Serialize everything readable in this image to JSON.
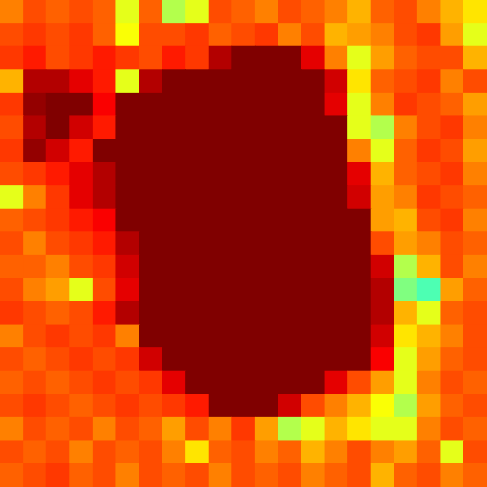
{
  "chart_data": {
    "type": "heatmap",
    "tick_labels": false,
    "zlim": [
      0,
      1
    ],
    "cells": [
      [
        0.75,
        0.8,
        0.78,
        0.8,
        0.78,
        0.6,
        0.78,
        0.55,
        0.6,
        0.8,
        0.78,
        0.75,
        0.8,
        0.78,
        0.75,
        0.7,
        0.78,
        0.8,
        0.75,
        0.7,
        0.65
      ],
      [
        0.8,
        0.82,
        0.8,
        0.82,
        0.78,
        0.62,
        0.8,
        0.8,
        0.82,
        0.78,
        0.8,
        0.82,
        0.75,
        0.8,
        0.7,
        0.72,
        0.75,
        0.8,
        0.82,
        0.72,
        0.6
      ],
      [
        0.82,
        0.85,
        0.8,
        0.82,
        0.85,
        0.82,
        0.8,
        0.85,
        0.82,
        0.95,
        1,
        1,
        1,
        0.9,
        0.75,
        0.6,
        0.72,
        0.78,
        0.8,
        0.8,
        0.7
      ],
      [
        0.7,
        0.95,
        0.95,
        0.9,
        0.85,
        0.6,
        0.95,
        1,
        1,
        1,
        1,
        1,
        1,
        1,
        0.92,
        0.65,
        0.78,
        0.8,
        0.82,
        0.75,
        0.8
      ],
      [
        0.82,
        0.98,
        1,
        1,
        0.88,
        1,
        1,
        1,
        1,
        1,
        1,
        1,
        1,
        1,
        0.9,
        0.6,
        0.75,
        0.82,
        0.8,
        0.78,
        0.72
      ],
      [
        0.8,
        0.95,
        1,
        0.92,
        0.85,
        1,
        1,
        1,
        1,
        1,
        1,
        1,
        1,
        1,
        1,
        0.6,
        0.55,
        0.75,
        0.8,
        0.82,
        0.75
      ],
      [
        0.82,
        0.98,
        0.92,
        0.85,
        1,
        1,
        1,
        1,
        1,
        1,
        1,
        1,
        1,
        1,
        1,
        0.75,
        0.6,
        0.78,
        0.82,
        0.8,
        0.72
      ],
      [
        0.8,
        0.82,
        0.85,
        0.9,
        0.95,
        1,
        1,
        1,
        1,
        1,
        1,
        1,
        1,
        1,
        1,
        0.9,
        0.7,
        0.78,
        0.8,
        0.82,
        0.75
      ],
      [
        0.6,
        0.75,
        0.82,
        0.9,
        0.95,
        1,
        1,
        1,
        1,
        1,
        1,
        1,
        1,
        1,
        1,
        0.92,
        0.72,
        0.75,
        0.82,
        0.8,
        0.78
      ],
      [
        0.78,
        0.8,
        0.82,
        0.85,
        0.88,
        1,
        1,
        1,
        1,
        1,
        1,
        1,
        1,
        1,
        1,
        1,
        0.72,
        0.7,
        0.8,
        0.82,
        0.75
      ],
      [
        0.8,
        0.75,
        0.8,
        0.82,
        0.85,
        0.95,
        1,
        1,
        1,
        1,
        1,
        1,
        1,
        1,
        1,
        1,
        0.8,
        0.72,
        0.75,
        0.8,
        0.78
      ],
      [
        0.78,
        0.78,
        0.75,
        0.8,
        0.82,
        0.92,
        1,
        1,
        1,
        1,
        1,
        1,
        1,
        1,
        1,
        1,
        0.92,
        0.55,
        0.7,
        0.8,
        0.75
      ],
      [
        0.8,
        0.75,
        0.72,
        0.6,
        0.8,
        0.9,
        1,
        1,
        1,
        1,
        1,
        1,
        1,
        1,
        1,
        1,
        0.95,
        0.5,
        0.45,
        0.72,
        0.78
      ],
      [
        0.82,
        0.8,
        0.78,
        0.8,
        0.85,
        0.95,
        1,
        1,
        1,
        1,
        1,
        1,
        1,
        1,
        1,
        1,
        0.95,
        0.7,
        0.6,
        0.78,
        0.8
      ],
      [
        0.75,
        0.8,
        0.82,
        0.8,
        0.82,
        0.75,
        1,
        1,
        1,
        1,
        1,
        1,
        1,
        1,
        1,
        1,
        0.92,
        0.65,
        0.7,
        0.75,
        0.8
      ],
      [
        0.8,
        0.78,
        0.8,
        0.82,
        0.8,
        0.82,
        0.92,
        1,
        1,
        1,
        1,
        1,
        1,
        1,
        1,
        1,
        0.88,
        0.6,
        0.72,
        0.78,
        0.8
      ],
      [
        0.78,
        0.8,
        0.78,
        0.8,
        0.82,
        0.8,
        0.82,
        0.9,
        1,
        1,
        1,
        1,
        1,
        1,
        0.9,
        0.8,
        0.72,
        0.6,
        0.75,
        0.8,
        0.78
      ],
      [
        0.8,
        0.82,
        0.8,
        0.78,
        0.8,
        0.82,
        0.8,
        0.82,
        0.85,
        1,
        1,
        1,
        0.92,
        0.8,
        0.75,
        0.7,
        0.62,
        0.55,
        0.72,
        0.78,
        0.8
      ],
      [
        0.75,
        0.8,
        0.78,
        0.8,
        0.75,
        0.8,
        0.78,
        0.72,
        0.8,
        0.75,
        0.82,
        0.72,
        0.55,
        0.6,
        0.7,
        0.65,
        0.6,
        0.6,
        0.75,
        0.8,
        0.78
      ],
      [
        0.8,
        0.78,
        0.8,
        0.75,
        0.8,
        0.78,
        0.8,
        0.75,
        0.65,
        0.78,
        0.8,
        0.75,
        0.78,
        0.7,
        0.75,
        0.8,
        0.75,
        0.72,
        0.78,
        0.6,
        0.8
      ],
      [
        0.78,
        0.8,
        0.82,
        0.78,
        0.8,
        0.75,
        0.8,
        0.78,
        0.8,
        0.75,
        0.8,
        0.78,
        0.8,
        0.75,
        0.78,
        0.8,
        0.7,
        0.78,
        0.8,
        0.75,
        0.78
      ]
    ]
  }
}
